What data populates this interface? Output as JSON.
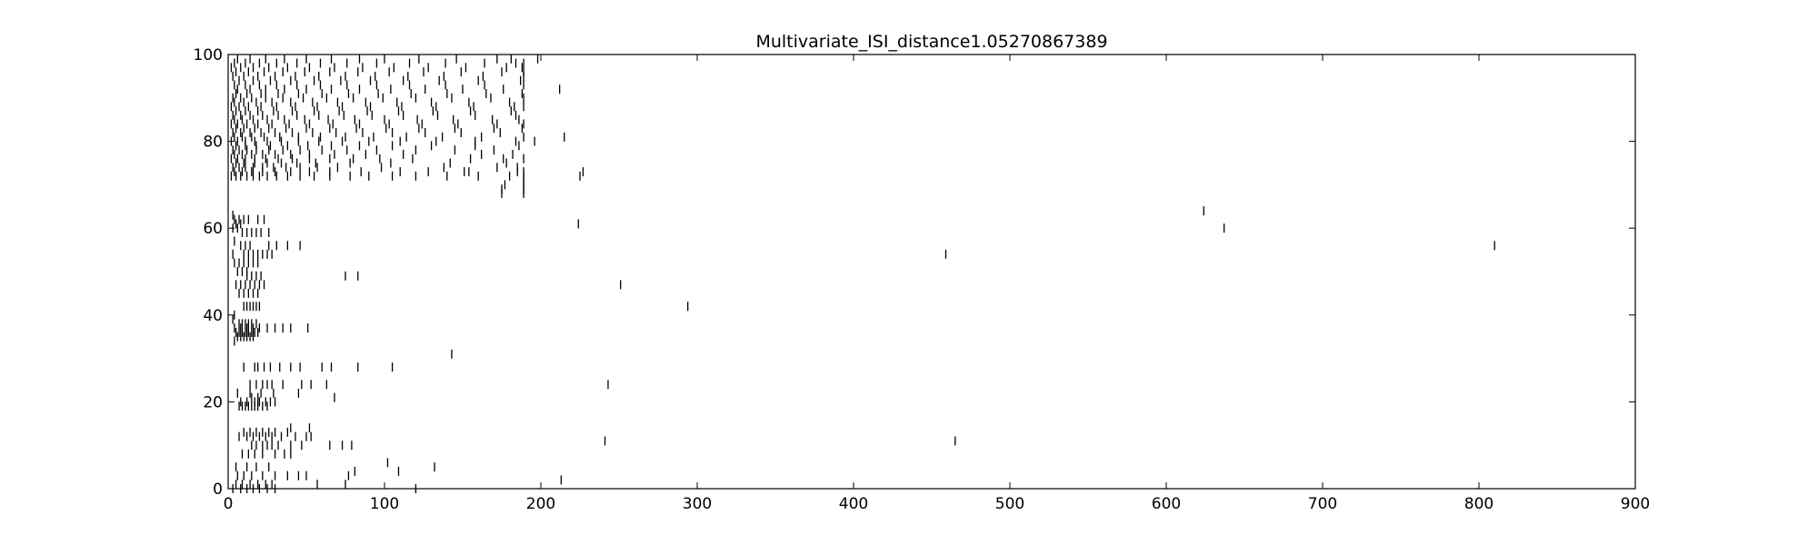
{
  "chart_data": {
    "type": "scatter",
    "marker": "vertical-tick",
    "title": "Multivariate_ISI_distance1.05270867389",
    "xlabel": "",
    "ylabel": "",
    "xlim": [
      0,
      900
    ],
    "ylim": [
      0,
      100
    ],
    "x_ticks": [
      0,
      100,
      200,
      300,
      400,
      500,
      600,
      700,
      800,
      900
    ],
    "y_ticks": [
      0,
      20,
      40,
      60,
      80,
      100
    ],
    "x_tick_labels": [
      "0",
      "100",
      "200",
      "300",
      "400",
      "500",
      "600",
      "700",
      "800",
      "900"
    ],
    "y_tick_labels": [
      "0",
      "20",
      "40",
      "60",
      "80",
      "100"
    ],
    "grid": false,
    "legend": "none",
    "marker_color": "#000000",
    "series": [
      {
        "values": [
          {
            "row": 0,
            "times": [
              3,
              8,
              12,
              16,
              20,
              25,
              30,
              120
            ]
          },
          {
            "row": 1,
            "times": [
              5,
              9,
              14,
              19,
              24,
              28,
              57,
              75
            ]
          },
          {
            "row": 2,
            "times": [
              213
            ]
          },
          {
            "row": 3,
            "times": [
              6,
              10,
              15,
              22,
              30,
              38,
              45,
              50,
              77
            ]
          },
          {
            "row": 4,
            "times": [
              81,
              109
            ]
          },
          {
            "row": 5,
            "times": [
              5,
              12,
              18,
              26,
              132
            ]
          },
          {
            "row": 6,
            "times": [
              102
            ]
          },
          {
            "row": 8,
            "times": [
              9,
              13,
              17,
              22,
              30,
              36,
              40
            ]
          },
          {
            "row": 10,
            "times": [
              15,
              18,
              22,
              25,
              28,
              32,
              40,
              47,
              65,
              73,
              79
            ]
          },
          {
            "row": 11,
            "times": [
              241,
              465
            ]
          },
          {
            "row": 12,
            "times": [
              7,
              12,
              16,
              20,
              24,
              28,
              34,
              43,
              50,
              53
            ]
          },
          {
            "row": 13,
            "times": [
              10,
              14,
              18,
              22,
              26,
              30,
              38
            ]
          },
          {
            "row": 14,
            "times": [
              40,
              52
            ]
          },
          {
            "row": 19,
            "times": [
              7,
              9,
              11,
              13,
              15,
              17,
              19,
              22,
              25
            ]
          },
          {
            "row": 20,
            "times": [
              8,
              12,
              17,
              20,
              24,
              27,
              30
            ]
          },
          {
            "row": 21,
            "times": [
              15,
              19,
              68
            ]
          },
          {
            "row": 22,
            "times": [
              6,
              14,
              21,
              29,
              45
            ]
          },
          {
            "row": 24,
            "times": [
              14,
              18,
              22,
              25,
              28,
              35,
              47,
              53,
              63,
              243
            ]
          },
          {
            "row": 28,
            "times": [
              10,
              17,
              19,
              23,
              27,
              33,
              40,
              46,
              60,
              66,
              83,
              105
            ]
          },
          {
            "row": 31,
            "times": [
              143
            ]
          },
          {
            "row": 34,
            "times": [
              4
            ]
          },
          {
            "row": 35,
            "times": [
              6,
              8,
              10,
              12,
              14,
              16
            ]
          },
          {
            "row": 36,
            "times": [
              5,
              7,
              9,
              11,
              13,
              15,
              17,
              19
            ]
          },
          {
            "row": 37,
            "times": [
              4,
              8,
              12,
              16,
              20,
              25,
              30,
              35,
              40,
              51
            ]
          },
          {
            "row": 38,
            "times": [
              7,
              9,
              11,
              13,
              15,
              18
            ]
          },
          {
            "row": 39,
            "times": [
              3
            ]
          },
          {
            "row": 40,
            "times": [
              4
            ]
          },
          {
            "row": 42,
            "times": [
              10,
              12,
              14,
              16,
              18,
              20,
              294
            ]
          },
          {
            "row": 45,
            "times": [
              7,
              10,
              13,
              16,
              19
            ]
          },
          {
            "row": 47,
            "times": [
              5,
              8,
              11,
              14,
              17,
              20,
              23,
              251
            ]
          },
          {
            "row": 49,
            "times": [
              12,
              15,
              18,
              21,
              75,
              83
            ]
          },
          {
            "row": 50,
            "times": [
              6,
              9,
              12
            ]
          },
          {
            "row": 52,
            "times": [
              4,
              7,
              10,
              13,
              16,
              19
            ]
          },
          {
            "row": 54,
            "times": [
              3,
              10,
              13,
              16,
              19,
              22,
              25,
              28,
              459
            ]
          },
          {
            "row": 56,
            "times": [
              8,
              11,
              14,
              26,
              31,
              38,
              46,
              810
            ]
          },
          {
            "row": 57,
            "times": [
              4
            ]
          },
          {
            "row": 59,
            "times": [
              9,
              12,
              15,
              18,
              21,
              26
            ]
          },
          {
            "row": 60,
            "times": [
              3,
              6,
              637
            ]
          },
          {
            "row": 61,
            "times": [
              5,
              8,
              224
            ]
          },
          {
            "row": 62,
            "times": [
              4,
              7,
              10,
              13,
              19,
              23
            ]
          },
          {
            "row": 63,
            "times": [
              3
            ]
          },
          {
            "row": 64,
            "times": [
              624
            ]
          },
          {
            "row": 68,
            "times": [
              175,
              189
            ]
          },
          {
            "row": 69,
            "times": [
              175,
              189
            ]
          },
          {
            "row": 70,
            "times": [
              177,
              189
            ]
          },
          {
            "row": 71,
            "times": [
              189
            ]
          },
          {
            "row": 72,
            "times": [
              2,
              5,
              8,
              12,
              16,
              20,
              25,
              31,
              38,
              46,
              55,
              65,
              78,
              90,
              105,
              120,
              140,
              160,
              180,
              189,
              225
            ]
          },
          {
            "row": 73,
            "times": [
              4,
              9,
              15,
              22,
              30,
              40,
              52,
              65,
              85,
              110,
              128,
              151,
              154,
              185,
              189,
              227
            ]
          },
          {
            "row": 74,
            "times": [
              3,
              7,
              11,
              16,
              22,
              29,
              37,
              46,
              57,
              70,
              98,
              138,
              172,
              185
            ]
          },
          {
            "row": 75,
            "times": [
              5,
              10,
              17,
              25,
              34,
              44,
              56,
              78,
              104,
              142,
              178
            ]
          },
          {
            "row": 76,
            "times": [
              2,
              6,
              11,
              17,
              24,
              32,
              41,
              52,
              65,
              80,
              97,
              118,
              155,
              176,
              189
            ]
          },
          {
            "row": 77,
            "times": [
              4,
              9,
              15,
              22,
              30,
              40,
              52,
              68,
              88,
              112,
              162,
              182
            ]
          },
          {
            "row": 78,
            "times": [
              3,
              7,
              12,
              18,
              26,
              35,
              46,
              60,
              76,
              95,
              120,
              145,
              170
            ]
          },
          {
            "row": 79,
            "times": [
              5,
              11,
              18,
              27,
              38,
              51,
              66,
              84,
              105,
              130,
              158,
              186
            ]
          },
          {
            "row": 80,
            "times": [
              2,
              6,
              11,
              17,
              25,
              34,
              45,
              58,
              73,
              90,
              110,
              133,
              158,
              184,
              196
            ]
          },
          {
            "row": 81,
            "times": [
              4,
              9,
              15,
              23,
              33,
              45,
              59,
              75,
              93,
              114,
              137,
              162,
              189,
              215
            ]
          },
          {
            "row": 82,
            "times": [
              3,
              8,
              14,
              21,
              30,
              41,
              54,
              69,
              86,
              105,
              126,
              149,
              174
            ]
          },
          {
            "row": 83,
            "times": [
              5,
              10,
              17,
              26,
              37,
              50,
              65,
              82,
              101,
              122,
              145,
              170,
              188
            ]
          },
          {
            "row": 84,
            "times": [
              2,
              6,
              12,
              19,
              28,
              39,
              52,
              67,
              84,
              103,
              124,
              147,
              172,
              189
            ]
          },
          {
            "row": 85,
            "times": [
              4,
              9,
              16,
              25,
              36,
              49,
              64,
              81,
              100,
              121,
              144,
              169,
              186
            ]
          },
          {
            "row": 86,
            "times": [
              3,
              8,
              14,
              22,
              32,
              44,
              58,
              74,
              92,
              112,
              134,
              158,
              184
            ]
          },
          {
            "row": 87,
            "times": [
              5,
              11,
              19,
              29,
              41,
              55,
              71,
              89,
              109,
              131,
              155,
              181
            ]
          },
          {
            "row": 88,
            "times": [
              2,
              7,
              13,
              21,
              31,
              43,
              57,
              73,
              91,
              111,
              133,
              157,
              183,
              189
            ]
          },
          {
            "row": 89,
            "times": [
              4,
              10,
              18,
              28,
              40,
              54,
              70,
              88,
              108,
              130,
              154,
              180
            ]
          },
          {
            "row": 90,
            "times": [
              3,
              8,
              15,
              24,
              35,
              48,
              63,
              80,
              99,
              120,
              143,
              168,
              189
            ]
          },
          {
            "row": 91,
            "times": [
              5,
              12,
              21,
              32,
              45,
              60,
              77,
              96,
              117,
              140,
              165,
              188
            ]
          },
          {
            "row": 92,
            "times": [
              6,
              14,
              24,
              36,
              50,
              66,
              84,
              104,
              126,
              150,
              176,
              212
            ]
          },
          {
            "row": 93,
            "times": [
              4,
              11,
              20,
              31,
              44,
              59,
              76,
              95,
              116,
              139,
              164,
              189
            ]
          },
          {
            "row": 94,
            "times": [
              7,
              16,
              27,
              40,
              55,
              72,
              91,
              112,
              135,
              160,
              187
            ]
          },
          {
            "row": 95,
            "times": [
              3,
              10,
              19,
              30,
              43,
              58,
              75,
              94,
              115,
              138,
              163,
              189
            ]
          },
          {
            "row": 96,
            "times": [
              5,
              13,
              23,
              35,
              49,
              65,
              83,
              103,
              125,
              149,
              175,
              189
            ]
          },
          {
            "row": 97,
            "times": [
              2,
              8,
              16,
              26,
              38,
              52,
              68,
              86,
              106,
              128,
              152,
              178,
              188
            ]
          },
          {
            "row": 98,
            "times": [
              4,
              11,
              20,
              31,
              44,
              59,
              76,
              95,
              116,
              139,
              164,
              184,
              189
            ]
          },
          {
            "row": 99,
            "times": [
              6,
              14,
              24,
              36,
              50,
              66,
              84,
              100,
              122,
              146,
              172,
              181,
              198
            ]
          }
        ]
      }
    ]
  }
}
